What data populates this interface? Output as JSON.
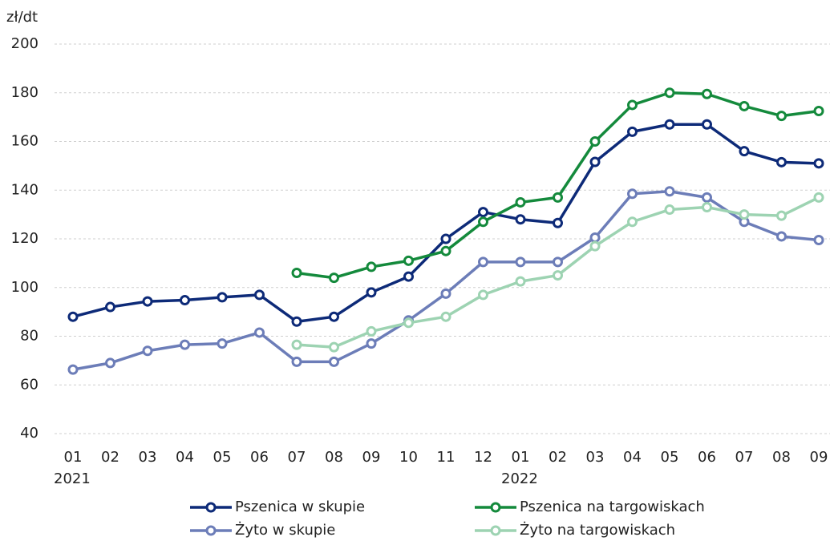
{
  "chart_data": {
    "type": "line",
    "y_axis_label": "zł/dt",
    "categories": [
      "01",
      "02",
      "03",
      "04",
      "05",
      "06",
      "07",
      "08",
      "09",
      "10",
      "11",
      "12",
      "01",
      "02",
      "03",
      "04",
      "05",
      "06",
      "07",
      "08",
      "09"
    ],
    "category_years": [
      "2021",
      null,
      null,
      null,
      null,
      null,
      null,
      null,
      null,
      null,
      null,
      null,
      "2022",
      null,
      null,
      null,
      null,
      null,
      null,
      null,
      null
    ],
    "series": [
      {
        "name": "Pszenica w skupie",
        "color": "#0d2a78",
        "values": [
          88,
          92,
          94.3,
          94.8,
          96,
          97,
          86,
          88,
          98,
          104.5,
          120,
          131,
          128,
          126.5,
          151.6,
          164,
          167,
          167,
          156,
          151.5,
          151
        ]
      },
      {
        "name": "Pszenica na targowiskach",
        "color": "#148a3c",
        "values": [
          null,
          null,
          null,
          null,
          null,
          null,
          106,
          104,
          108.5,
          111,
          115,
          127,
          135,
          137,
          160,
          175,
          180,
          179.5,
          174.5,
          170.5,
          172.5
        ]
      },
      {
        "name": "Żyto w skupie",
        "color": "#6c7db8",
        "values": [
          66.3,
          69,
          74,
          76.5,
          77,
          81.5,
          69.5,
          69.5,
          77,
          86.5,
          97.5,
          110.5,
          110.5,
          110.5,
          120.5,
          138.5,
          139.5,
          137,
          127,
          121,
          119.5
        ]
      },
      {
        "name": "Żyto na targowiskach",
        "color": "#9dd3b2",
        "values": [
          null,
          null,
          null,
          null,
          null,
          null,
          76.5,
          75.5,
          82,
          85.5,
          88,
          97,
          102.5,
          105,
          117,
          127,
          132,
          133,
          130,
          129.5,
          137
        ]
      }
    ],
    "ylim": [
      40,
      200
    ],
    "yticks": [
      40,
      60,
      80,
      100,
      120,
      140,
      160,
      180,
      200
    ],
    "grid": true,
    "legend": "bottom"
  }
}
